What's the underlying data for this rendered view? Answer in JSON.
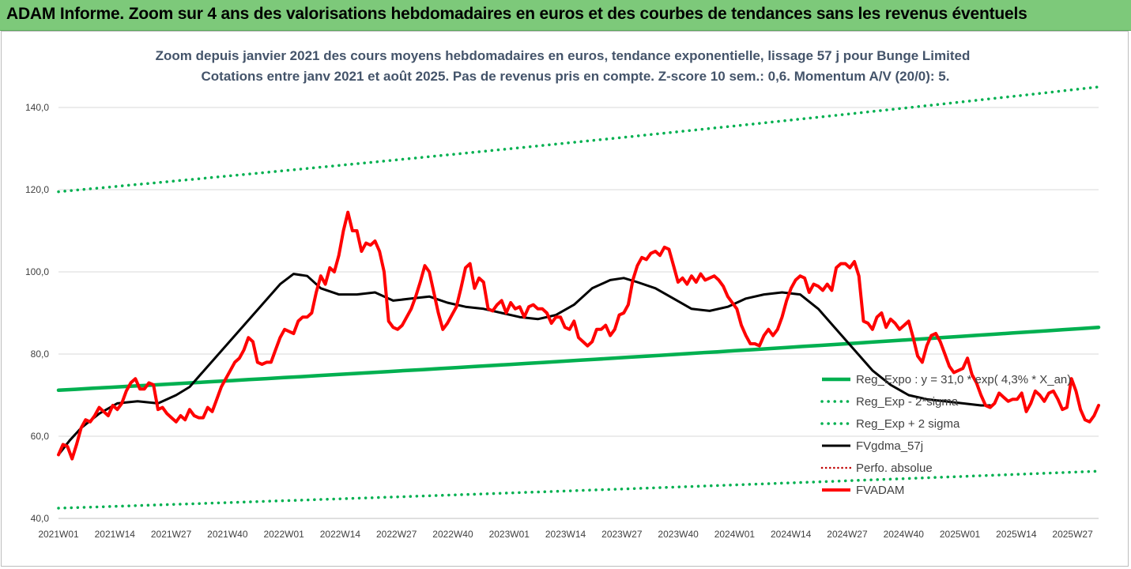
{
  "header": {
    "title": "ADAM Informe. Zoom sur 4 ans des valorisations hebdomadaires en euros et des courbes de tendances sans les revenus éventuels"
  },
  "colors": {
    "banner": "#7dc97a",
    "trend": "#00b050",
    "price": "#ff0000",
    "smooth": "#000000",
    "perfo": "#c00000"
  },
  "chart_data": {
    "type": "line",
    "title": "Zoom depuis janvier 2021 des cours moyens hebdomadaires en euros, tendance exponentielle, lissage 57 j pour Bunge Limited",
    "subtitle": "Cotations entre janv 2021 et août 2025.  Pas de revenus pris en compte. Z-score 10 sem.: 0,6. Momentum A/V (20/0): 5.",
    "xlabel": "",
    "ylabel": "",
    "ylim": [
      40,
      150
    ],
    "yticks": [
      40,
      60,
      80,
      100,
      120,
      140
    ],
    "ytick_labels": [
      "40,0",
      "60,0",
      "80,0",
      "100,0",
      "120,0",
      "140,0"
    ],
    "xtick_labels": [
      "2021W01",
      "2021W14",
      "2021W27",
      "2021W40",
      "2022W01",
      "2022W14",
      "2022W27",
      "2022W40",
      "2023W01",
      "2023W14",
      "2023W27",
      "2023W40",
      "2024W01",
      "2024W14",
      "2024W27",
      "2024W40",
      "2025W01",
      "2025W14",
      "2025W27"
    ],
    "weeks": 240,
    "grid": "horizontal",
    "legend_position": "bottom-right",
    "series": [
      {
        "name": "Reg_Expo : y = 31,0 * exp( 4,3% *  X_an)",
        "style": "solid",
        "color": "#00b050",
        "start": 71.2,
        "end": 86.5
      },
      {
        "name": "Reg_Exp - 2*sigma",
        "style": "dotted",
        "color": "#00b050",
        "start": 42.5,
        "end": 51.5
      },
      {
        "name": "Reg_Exp + 2 sigma",
        "style": "dotted",
        "color": "#00b050",
        "start": 119.5,
        "end": 145.0
      },
      {
        "name": "FVgdma_57j",
        "style": "solid",
        "color": "#000000",
        "points": [
          [
            0,
            55.5
          ],
          [
            5,
            59
          ],
          [
            10,
            62
          ],
          [
            18,
            65.5
          ],
          [
            26,
            68
          ],
          [
            35,
            68.5
          ],
          [
            44,
            68
          ],
          [
            52,
            70
          ],
          [
            58,
            72
          ],
          [
            66,
            77
          ],
          [
            74,
            82
          ],
          [
            82,
            87
          ],
          [
            90,
            92
          ],
          [
            98,
            97
          ],
          [
            104,
            99.5
          ],
          [
            110,
            99
          ],
          [
            116,
            96
          ],
          [
            124,
            94.5
          ],
          [
            132,
            94.5
          ],
          [
            140,
            95
          ],
          [
            148,
            93
          ],
          [
            156,
            93.5
          ],
          [
            164,
            94
          ],
          [
            172,
            92.5
          ],
          [
            180,
            91.5
          ],
          [
            188,
            91
          ],
          [
            196,
            90
          ],
          [
            204,
            89
          ],
          [
            212,
            88.5
          ],
          [
            220,
            89.5
          ],
          [
            228,
            92
          ],
          [
            236,
            96
          ],
          [
            244,
            98
          ],
          [
            250,
            98.5
          ],
          [
            256,
            97.5
          ],
          [
            264,
            96
          ],
          [
            272,
            93.5
          ],
          [
            280,
            91
          ],
          [
            288,
            90.5
          ],
          [
            296,
            91.5
          ],
          [
            304,
            93.5
          ],
          [
            312,
            94.5
          ],
          [
            320,
            95
          ],
          [
            328,
            94.5
          ],
          [
            336,
            91
          ],
          [
            344,
            86
          ],
          [
            352,
            81
          ],
          [
            360,
            76
          ],
          [
            368,
            72.5
          ],
          [
            376,
            70
          ],
          [
            384,
            69
          ],
          [
            392,
            68.5
          ],
          [
            400,
            68
          ],
          [
            408,
            67.5
          ],
          [
            412,
            67.5
          ]
        ]
      },
      {
        "name": "Perfo. absolue",
        "style": "dotted",
        "color": "#c00000",
        "points": []
      },
      {
        "name": "FVADAM",
        "style": "solid",
        "color": "#ff0000",
        "points": [
          [
            0,
            55.5
          ],
          [
            2,
            58
          ],
          [
            4,
            57.5
          ],
          [
            6,
            54.5
          ],
          [
            8,
            58
          ],
          [
            10,
            62
          ],
          [
            12,
            64
          ],
          [
            14,
            63.5
          ],
          [
            16,
            65
          ],
          [
            18,
            67
          ],
          [
            20,
            66
          ],
          [
            22,
            65
          ],
          [
            24,
            67.5
          ],
          [
            26,
            66.5
          ],
          [
            28,
            68
          ],
          [
            30,
            71
          ],
          [
            32,
            73
          ],
          [
            34,
            74
          ],
          [
            36,
            71.5
          ],
          [
            38,
            71.5
          ],
          [
            40,
            73
          ],
          [
            42,
            72.5
          ],
          [
            44,
            66.5
          ],
          [
            46,
            67
          ],
          [
            48,
            65.5
          ],
          [
            50,
            64.5
          ],
          [
            52,
            63.5
          ],
          [
            54,
            65
          ],
          [
            56,
            64
          ],
          [
            58,
            66.5
          ],
          [
            60,
            65
          ],
          [
            62,
            64.5
          ],
          [
            64,
            64.5
          ],
          [
            66,
            67
          ],
          [
            68,
            66
          ],
          [
            70,
            69
          ],
          [
            72,
            72
          ],
          [
            74,
            74
          ],
          [
            76,
            76
          ],
          [
            78,
            78
          ],
          [
            80,
            79
          ],
          [
            82,
            81
          ],
          [
            84,
            84
          ],
          [
            86,
            83
          ],
          [
            88,
            78
          ],
          [
            90,
            77.5
          ],
          [
            92,
            78
          ],
          [
            94,
            78
          ],
          [
            96,
            81
          ],
          [
            98,
            84
          ],
          [
            100,
            86
          ],
          [
            102,
            85.5
          ],
          [
            104,
            85
          ],
          [
            106,
            88
          ],
          [
            108,
            89
          ],
          [
            110,
            89
          ],
          [
            112,
            90
          ],
          [
            114,
            95
          ],
          [
            116,
            99
          ],
          [
            118,
            97
          ],
          [
            120,
            101
          ],
          [
            122,
            100
          ],
          [
            124,
            104
          ],
          [
            126,
            110
          ],
          [
            128,
            114.5
          ],
          [
            130,
            110
          ],
          [
            132,
            110
          ],
          [
            134,
            105
          ],
          [
            136,
            107
          ],
          [
            138,
            106.5
          ],
          [
            140,
            107.5
          ],
          [
            142,
            105
          ],
          [
            144,
            100
          ],
          [
            146,
            88
          ],
          [
            148,
            86.5
          ],
          [
            150,
            86
          ],
          [
            152,
            87
          ],
          [
            154,
            89
          ],
          [
            156,
            91
          ],
          [
            158,
            94
          ],
          [
            160,
            97.5
          ],
          [
            162,
            101.5
          ],
          [
            164,
            100
          ],
          [
            166,
            95
          ],
          [
            168,
            90
          ],
          [
            170,
            86
          ],
          [
            172,
            87.5
          ],
          [
            174,
            89.5
          ],
          [
            176,
            91.5
          ],
          [
            178,
            96
          ],
          [
            180,
            101
          ],
          [
            182,
            102
          ],
          [
            184,
            96
          ],
          [
            186,
            98.5
          ],
          [
            188,
            97.5
          ],
          [
            190,
            91
          ],
          [
            192,
            90.5
          ],
          [
            194,
            92
          ],
          [
            196,
            93
          ],
          [
            198,
            90
          ],
          [
            200,
            92.5
          ],
          [
            202,
            91
          ],
          [
            204,
            91.5
          ],
          [
            206,
            89
          ],
          [
            208,
            91.5
          ],
          [
            210,
            92
          ],
          [
            212,
            91
          ],
          [
            214,
            91
          ],
          [
            216,
            90
          ],
          [
            218,
            87.5
          ],
          [
            220,
            89
          ],
          [
            222,
            89
          ],
          [
            224,
            86.5
          ],
          [
            226,
            86
          ],
          [
            228,
            88
          ],
          [
            230,
            84
          ],
          [
            232,
            83
          ],
          [
            234,
            82
          ],
          [
            236,
            83
          ],
          [
            238,
            86
          ],
          [
            240,
            86
          ],
          [
            242,
            87
          ],
          [
            244,
            84.5
          ],
          [
            246,
            86
          ],
          [
            248,
            89.5
          ],
          [
            250,
            90
          ],
          [
            252,
            92
          ],
          [
            254,
            98
          ],
          [
            256,
            101.5
          ],
          [
            258,
            103.5
          ],
          [
            260,
            103
          ],
          [
            262,
            104.5
          ],
          [
            264,
            105
          ],
          [
            266,
            104
          ],
          [
            268,
            106
          ],
          [
            270,
            105.5
          ],
          [
            272,
            101.5
          ],
          [
            274,
            97.5
          ],
          [
            276,
            98.5
          ],
          [
            278,
            97
          ],
          [
            280,
            99
          ],
          [
            282,
            97.5
          ],
          [
            284,
            99.5
          ],
          [
            286,
            98
          ],
          [
            288,
            98.5
          ],
          [
            290,
            99
          ],
          [
            292,
            98
          ],
          [
            294,
            96.5
          ],
          [
            296,
            94
          ],
          [
            298,
            92.5
          ],
          [
            300,
            91
          ],
          [
            302,
            87
          ],
          [
            304,
            84.5
          ],
          [
            306,
            82.5
          ],
          [
            308,
            82.5
          ],
          [
            310,
            82
          ],
          [
            312,
            84.5
          ],
          [
            314,
            86
          ],
          [
            316,
            84.5
          ],
          [
            318,
            86
          ],
          [
            320,
            89
          ],
          [
            322,
            93
          ],
          [
            324,
            96
          ],
          [
            326,
            98
          ],
          [
            328,
            99
          ],
          [
            330,
            98.5
          ],
          [
            332,
            95
          ],
          [
            334,
            97
          ],
          [
            336,
            96.5
          ],
          [
            338,
            95.5
          ],
          [
            340,
            97
          ],
          [
            342,
            95.5
          ],
          [
            344,
            101
          ],
          [
            346,
            102
          ],
          [
            348,
            102
          ],
          [
            350,
            101
          ],
          [
            352,
            102.5
          ],
          [
            354,
            99
          ],
          [
            356,
            88
          ],
          [
            358,
            87.5
          ],
          [
            360,
            86
          ],
          [
            362,
            89
          ],
          [
            364,
            90
          ],
          [
            366,
            86.5
          ],
          [
            368,
            88.5
          ],
          [
            370,
            87.5
          ],
          [
            372,
            86
          ],
          [
            374,
            87
          ],
          [
            376,
            88
          ],
          [
            378,
            84
          ],
          [
            380,
            79.5
          ],
          [
            382,
            78
          ],
          [
            384,
            82
          ],
          [
            386,
            84.5
          ],
          [
            388,
            85
          ],
          [
            390,
            83
          ],
          [
            392,
            80
          ],
          [
            394,
            77
          ],
          [
            396,
            75.5
          ],
          [
            398,
            76
          ],
          [
            400,
            76.5
          ],
          [
            402,
            79
          ],
          [
            404,
            75
          ],
          [
            406,
            73
          ],
          [
            408,
            70
          ],
          [
            410,
            67.5
          ],
          [
            412,
            67
          ],
          [
            414,
            68
          ],
          [
            416,
            70.5
          ],
          [
            418,
            69.5
          ],
          [
            420,
            68.5
          ],
          [
            422,
            69
          ],
          [
            424,
            69
          ],
          [
            426,
            70.5
          ],
          [
            428,
            66
          ],
          [
            430,
            68
          ],
          [
            432,
            71
          ],
          [
            434,
            70
          ],
          [
            436,
            68.5
          ],
          [
            438,
            70.5
          ],
          [
            440,
            71
          ],
          [
            442,
            69
          ],
          [
            444,
            66.5
          ],
          [
            446,
            67
          ],
          [
            448,
            74
          ],
          [
            450,
            71
          ],
          [
            452,
            66.5
          ],
          [
            454,
            64
          ],
          [
            456,
            63.5
          ],
          [
            458,
            65
          ],
          [
            460,
            67.5
          ]
        ]
      }
    ]
  }
}
